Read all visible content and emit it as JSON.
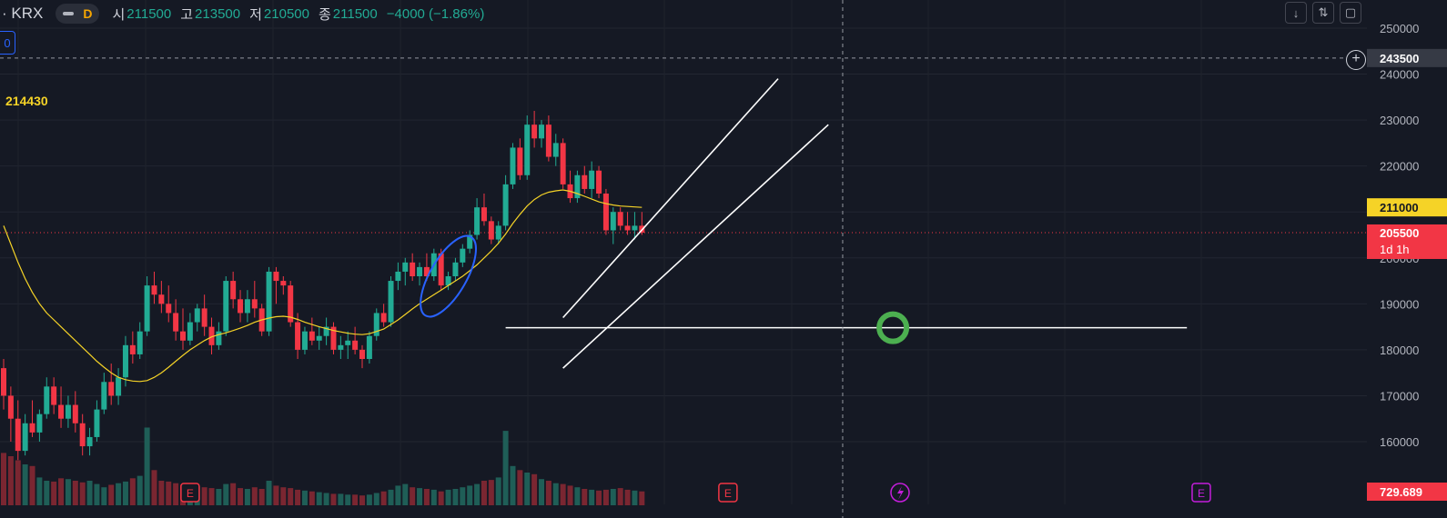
{
  "header": {
    "symbol": "· KRX",
    "timeframe": "D",
    "open_label": "시",
    "open": "211500",
    "high_label": "고",
    "high": "213500",
    "low_label": "저",
    "low": "210500",
    "close_label": "종",
    "close": "211500",
    "change": "−4000 (−1.86%)"
  },
  "left_badge": "0",
  "ma_value": "214430",
  "price_axis": {
    "labels": [
      "250000",
      "240000",
      "230000",
      "220000",
      "210000",
      "200000",
      "190000",
      "180000",
      "170000",
      "160000"
    ],
    "crosshair_label": "243500",
    "ma_label": "211000",
    "last_price_label": "205500",
    "countdown_label": "1d 1h",
    "volume_label": "729.689"
  },
  "colors": {
    "up": "#22ab94",
    "down": "#f23645",
    "ma": "#f5d327",
    "background": "#151924"
  },
  "icons": [
    "chevron-down-icon",
    "collapse-icon",
    "fullscreen-icon",
    "plus-circle-icon",
    "earnings-icon",
    "dividend-icon"
  ],
  "events": {
    "earnings_label": "E"
  },
  "chart_data": {
    "type": "candlestick",
    "ylim": [
      155000,
      253000
    ],
    "ohlc": [
      [
        176000,
        178000,
        167000,
        170000
      ],
      [
        170000,
        172000,
        160000,
        165000
      ],
      [
        165000,
        169000,
        156000,
        158000
      ],
      [
        158000,
        166000,
        157000,
        164000
      ],
      [
        164000,
        169000,
        161000,
        162000
      ],
      [
        162000,
        167000,
        160000,
        166000
      ],
      [
        166000,
        174000,
        165000,
        172000
      ],
      [
        172000,
        174000,
        166000,
        168000
      ],
      [
        168000,
        172000,
        163000,
        165000
      ],
      [
        165000,
        170000,
        163000,
        168000
      ],
      [
        168000,
        171000,
        162000,
        164000
      ],
      [
        164000,
        166000,
        157000,
        159000
      ],
      [
        159000,
        163000,
        157000,
        161000
      ],
      [
        161000,
        169000,
        160000,
        167000
      ],
      [
        167000,
        175000,
        166000,
        173000
      ],
      [
        173000,
        177000,
        168000,
        170000
      ],
      [
        170000,
        176000,
        168000,
        174000
      ],
      [
        174000,
        183000,
        172000,
        181000
      ],
      [
        181000,
        184000,
        177000,
        179000
      ],
      [
        179000,
        186000,
        178000,
        184000
      ],
      [
        184000,
        196000,
        183000,
        194000
      ],
      [
        194000,
        197000,
        190000,
        192000
      ],
      [
        192000,
        195000,
        188000,
        190000
      ],
      [
        190000,
        194000,
        186000,
        188000
      ],
      [
        188000,
        191000,
        182000,
        184000
      ],
      [
        184000,
        189000,
        180000,
        182000
      ],
      [
        182000,
        188000,
        181000,
        186000
      ],
      [
        186000,
        190000,
        184000,
        189000
      ],
      [
        189000,
        192000,
        183000,
        185000
      ],
      [
        185000,
        187000,
        179000,
        181000
      ],
      [
        181000,
        186000,
        180000,
        184000
      ],
      [
        184000,
        196000,
        183000,
        195000
      ],
      [
        195000,
        197000,
        189000,
        191000
      ],
      [
        191000,
        193000,
        186000,
        188000
      ],
      [
        188000,
        193000,
        186000,
        191000
      ],
      [
        191000,
        195000,
        187000,
        189000
      ],
      [
        189000,
        190000,
        183000,
        184000
      ],
      [
        184000,
        198000,
        183000,
        197000
      ],
      [
        197000,
        198000,
        190000,
        195000
      ],
      [
        195000,
        196000,
        192000,
        194000
      ],
      [
        194000,
        195000,
        185000,
        186000
      ],
      [
        186000,
        188000,
        178000,
        180000
      ],
      [
        180000,
        185000,
        179000,
        184000
      ],
      [
        184000,
        187000,
        181000,
        182000
      ],
      [
        182000,
        185000,
        180000,
        183000
      ],
      [
        183000,
        187000,
        181000,
        185000
      ],
      [
        185000,
        186000,
        179000,
        180000
      ],
      [
        180000,
        183000,
        178000,
        181000
      ],
      [
        181000,
        184000,
        178000,
        182000
      ],
      [
        182000,
        185000,
        179000,
        180000
      ],
      [
        180000,
        181000,
        176000,
        178000
      ],
      [
        178000,
        184000,
        177000,
        183000
      ],
      [
        183000,
        189000,
        182000,
        188000
      ],
      [
        188000,
        190000,
        185000,
        186000
      ],
      [
        186000,
        196000,
        185000,
        195000
      ],
      [
        195000,
        199000,
        193000,
        197000
      ],
      [
        197000,
        200000,
        194000,
        199000
      ],
      [
        199000,
        201000,
        195000,
        196000
      ],
      [
        196000,
        199000,
        194000,
        198000
      ],
      [
        198000,
        201000,
        195000,
        196000
      ],
      [
        196000,
        202000,
        195000,
        201000
      ],
      [
        201000,
        202000,
        193000,
        194000
      ],
      [
        194000,
        197000,
        193000,
        196000
      ],
      [
        196000,
        200000,
        195000,
        199000
      ],
      [
        199000,
        203000,
        198000,
        202000
      ],
      [
        202000,
        206000,
        201000,
        205000
      ],
      [
        205000,
        213000,
        204000,
        211000
      ],
      [
        211000,
        214000,
        207000,
        208000
      ],
      [
        208000,
        209000,
        203000,
        204000
      ],
      [
        204000,
        208000,
        203000,
        207000
      ],
      [
        207000,
        218000,
        206000,
        216000
      ],
      [
        216000,
        225000,
        215000,
        224000
      ],
      [
        224000,
        226000,
        217000,
        218000
      ],
      [
        218000,
        231000,
        217000,
        229000
      ],
      [
        229000,
        232000,
        224000,
        226000
      ],
      [
        226000,
        230000,
        224000,
        229000
      ],
      [
        229000,
        231000,
        221000,
        222000
      ],
      [
        222000,
        227000,
        220000,
        225000
      ],
      [
        225000,
        226000,
        215000,
        216000
      ],
      [
        216000,
        219000,
        212000,
        213000
      ],
      [
        213000,
        219000,
        212000,
        218000
      ],
      [
        218000,
        220000,
        214000,
        215000
      ],
      [
        215000,
        221000,
        213000,
        219000
      ],
      [
        219000,
        220000,
        213000,
        214000
      ],
      [
        214000,
        215000,
        205000,
        206000
      ],
      [
        206000,
        211000,
        203000,
        210000
      ],
      [
        210000,
        211000,
        206000,
        207000
      ],
      [
        207000,
        210000,
        205000,
        206000
      ],
      [
        206000,
        210000,
        204000,
        207000
      ],
      [
        207000,
        210000,
        205000,
        205500
      ]
    ],
    "ma": [
      207000,
      203000,
      199000,
      195500,
      192500,
      190000,
      188000,
      186500,
      185000,
      183500,
      182000,
      180500,
      179000,
      177500,
      176200,
      175000,
      174000,
      173500,
      173200,
      173100,
      173300,
      174000,
      175000,
      176200,
      177500,
      178800,
      180000,
      181000,
      182000,
      182800,
      183300,
      183700,
      184200,
      184700,
      185300,
      186000,
      186500,
      186900,
      187200,
      187300,
      187100,
      186600,
      186000,
      185500,
      185000,
      184600,
      184200,
      183900,
      183600,
      183400,
      183300,
      183500,
      184000,
      184500,
      185500,
      186500,
      187700,
      188900,
      190000,
      191000,
      192000,
      193000,
      194000,
      195000,
      196000,
      197200,
      198500,
      200000,
      201500,
      203200,
      205200,
      207500,
      209500,
      211300,
      212700,
      213700,
      214300,
      214600,
      214800,
      214500,
      214000,
      213400,
      212800,
      212200,
      211800,
      211500,
      211300,
      211200,
      211100,
      211000
    ],
    "volume": [
      0.64,
      0.6,
      0.55,
      0.5,
      0.48,
      0.34,
      0.3,
      0.29,
      0.33,
      0.32,
      0.3,
      0.28,
      0.3,
      0.26,
      0.22,
      0.25,
      0.27,
      0.29,
      0.33,
      0.36,
      0.95,
      0.43,
      0.3,
      0.29,
      0.27,
      0.25,
      0.24,
      0.23,
      0.22,
      0.21,
      0.2,
      0.26,
      0.27,
      0.21,
      0.2,
      0.22,
      0.2,
      0.3,
      0.24,
      0.22,
      0.21,
      0.19,
      0.18,
      0.17,
      0.16,
      0.15,
      0.14,
      0.14,
      0.13,
      0.13,
      0.12,
      0.13,
      0.15,
      0.17,
      0.19,
      0.24,
      0.26,
      0.22,
      0.21,
      0.2,
      0.19,
      0.17,
      0.19,
      0.2,
      0.22,
      0.24,
      0.26,
      0.3,
      0.31,
      0.34,
      0.91,
      0.48,
      0.43,
      0.4,
      0.38,
      0.32,
      0.3,
      0.27,
      0.26,
      0.24,
      0.22,
      0.2,
      0.19,
      0.18,
      0.19,
      0.2,
      0.21,
      0.19,
      0.18,
      0.17
    ],
    "volume_colors": "candle",
    "drawings": [
      {
        "type": "trendline",
        "from": [
          78,
          187000
        ],
        "to": [
          108,
          239000
        ]
      },
      {
        "type": "trendline",
        "from": [
          78,
          176000
        ],
        "to": [
          115,
          229000
        ]
      },
      {
        "type": "horizontal",
        "from": [
          70,
          184800
        ],
        "to": [
          165,
          184800
        ]
      },
      {
        "type": "ellipse",
        "around": [
          62,
          196000
        ]
      },
      {
        "type": "circle",
        "at": [
          124,
          184800
        ]
      }
    ],
    "crosshair": {
      "x_index": 117,
      "y": 243500
    },
    "earnings_markers_index": [
      26,
      101,
      167
    ],
    "dividend_marker_index": 125
  }
}
